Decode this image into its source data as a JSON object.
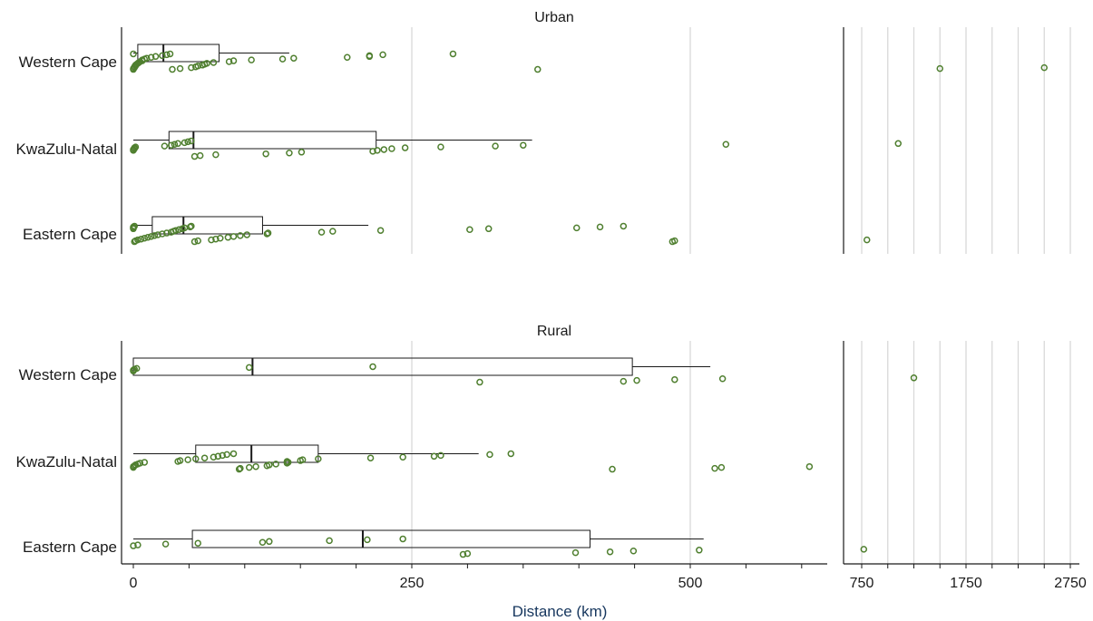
{
  "chart_data": {
    "type": "box",
    "xlabel": "Distance (km)",
    "x_axis": {
      "segment_1": {
        "range": [
          -10,
          620
        ],
        "ticks": [
          0,
          250,
          500
        ],
        "tick_labels": [
          "0",
          "250",
          "500"
        ]
      },
      "segment_2": {
        "range": [
          650,
          2800
        ],
        "ticks": [
          750,
          1750,
          2750
        ],
        "tick_labels": [
          "750",
          "1750",
          "2750"
        ]
      }
    },
    "colors": {
      "points": "#4f7f2f",
      "box": "#1a1a1a",
      "grid": "#d9d9d9"
    },
    "panels": [
      {
        "title": "Urban",
        "categories": [
          "Western Cape",
          "KwaZulu-Natal",
          "Eastern Cape"
        ],
        "boxes": [
          {
            "min": 0,
            "q1": 4,
            "median": 27,
            "q3": 77,
            "max": 140
          },
          {
            "min": 0,
            "q1": 32,
            "median": 54,
            "q3": 218,
            "max": 358
          },
          {
            "min": 0,
            "q1": 17,
            "median": 45,
            "q3": 116,
            "max": 211
          }
        ],
        "points": [
          [
            0,
            0,
            0,
            1,
            1,
            2,
            2,
            3,
            4,
            5,
            6,
            8,
            8,
            10,
            12,
            16,
            20,
            26,
            30,
            33,
            35,
            42,
            52,
            56,
            58,
            62,
            64,
            66,
            72,
            86,
            90,
            106,
            134,
            144,
            192,
            212,
            212,
            224,
            287,
            363,
            1500,
            2500
          ],
          [
            0,
            0,
            1,
            1,
            2,
            28,
            34,
            37,
            40,
            46,
            49,
            52,
            55,
            60,
            74,
            119,
            140,
            151,
            215,
            219,
            225,
            232,
            244,
            276,
            325,
            350,
            532,
            1100
          ],
          [
            0,
            0,
            0,
            1,
            1,
            2,
            4,
            7,
            10,
            13,
            16,
            19,
            22,
            26,
            30,
            34,
            36,
            38,
            41,
            44,
            46,
            51,
            52,
            55,
            58,
            70,
            74,
            78,
            85,
            90,
            96,
            102,
            120,
            121,
            169,
            179,
            222,
            302,
            319,
            398,
            419,
            440,
            484,
            486,
            800
          ]
        ]
      },
      {
        "title": "Rural",
        "categories": [
          "Western Cape",
          "KwaZulu-Natal",
          "Eastern Cape"
        ],
        "boxes": [
          {
            "min": 0,
            "q1": 0,
            "median": 107,
            "q3": 448,
            "max": 518
          },
          {
            "min": 0,
            "q1": 56,
            "median": 106,
            "q3": 166,
            "max": 310
          },
          {
            "min": 0,
            "q1": 53,
            "median": 206,
            "q3": 410,
            "max": 512
          }
        ],
        "points": [
          [
            0,
            0,
            1,
            3,
            104,
            215,
            311,
            440,
            452,
            486,
            529,
            1250
          ],
          [
            0,
            0,
            1,
            2,
            4,
            6,
            10,
            40,
            42,
            49,
            56,
            64,
            72,
            76,
            80,
            84,
            90,
            95,
            96,
            104,
            110,
            120,
            122,
            128,
            138,
            139,
            138,
            150,
            152,
            166,
            213,
            242,
            270,
            276,
            320,
            339,
            430,
            522,
            528,
            607
          ],
          [
            0,
            4,
            29,
            58,
            116,
            122,
            176,
            210,
            242,
            296,
            300,
            397,
            428,
            449,
            508,
            770
          ]
        ]
      }
    ]
  }
}
